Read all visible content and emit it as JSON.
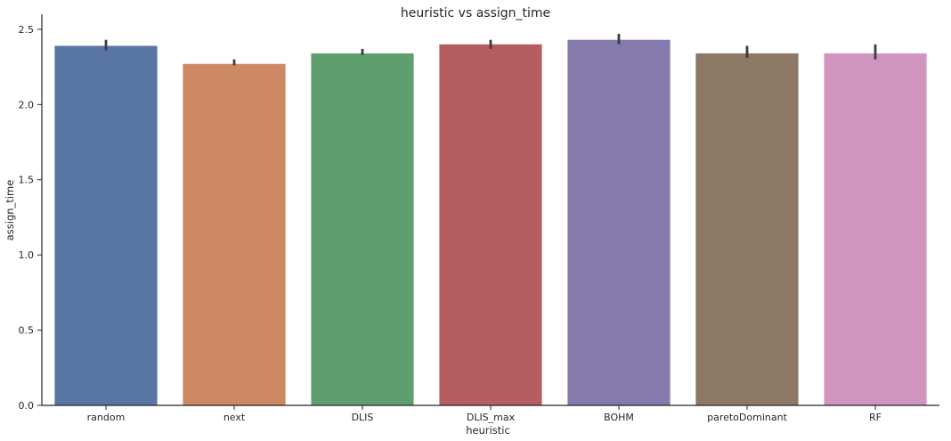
{
  "chart_data": {
    "type": "bar",
    "title": "heuristic vs assign_time",
    "xlabel": "heuristic",
    "ylabel": "assign_time",
    "categories": [
      "random",
      "next",
      "DLIS",
      "DLIS_max",
      "BOHM",
      "paretoDominant",
      "RF"
    ],
    "values": [
      2.39,
      2.27,
      2.34,
      2.4,
      2.43,
      2.34,
      2.34
    ],
    "error_low": [
      2.36,
      2.26,
      2.33,
      2.37,
      2.4,
      2.31,
      2.3
    ],
    "error_high": [
      2.43,
      2.3,
      2.37,
      2.43,
      2.47,
      2.39,
      2.4
    ],
    "colors": [
      "#5975a4",
      "#cc8963",
      "#5f9e6e",
      "#b55d60",
      "#857aab",
      "#8d7866",
      "#d095bf"
    ],
    "ylim": [
      0,
      2.6
    ],
    "yticks": [
      "0.0",
      "0.5",
      "1.0",
      "1.5",
      "2.0",
      "2.5"
    ],
    "grid": false
  }
}
